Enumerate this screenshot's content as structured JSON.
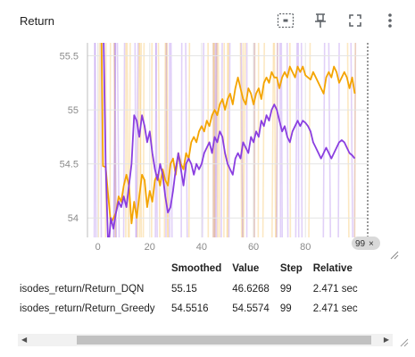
{
  "card": {
    "title": "Return"
  },
  "toolbar": {
    "icons": [
      "fit-domain-icon",
      "pin-icon",
      "fullscreen-icon",
      "more-vert-icon"
    ]
  },
  "step_badge": {
    "label": "99",
    "close": "×"
  },
  "legend": {
    "headers": {
      "name": "",
      "smoothed": "Smoothed",
      "value": "Value",
      "step": "Step",
      "relative": "Relative"
    },
    "rows": [
      {
        "name": "isodes_return/Return_DQN",
        "smoothed": "55.15",
        "value": "46.6268",
        "step": "99",
        "relative": "2.471 sec",
        "color": "#f4a400"
      },
      {
        "name": "isodes_return/Return_Greedy",
        "smoothed": "54.5516",
        "value": "54.5574",
        "step": "99",
        "relative": "2.471 sec",
        "color": "#8a3ee0"
      }
    ]
  },
  "chart_data": {
    "type": "line",
    "title": "Return",
    "xlabel": "",
    "ylabel": "",
    "xlim": [
      -4,
      104
    ],
    "ylim": [
      53.82,
      55.62
    ],
    "x_ticks": [
      0,
      20,
      40,
      60,
      80
    ],
    "y_ticks": [
      54,
      54.5,
      55,
      55.5
    ],
    "grid": true,
    "series": [
      {
        "name": "isodes_return/Return_DQN",
        "color": "#f4a400",
        "smoothed": [
          [
            1,
            56.5
          ],
          [
            2,
            54.48
          ],
          [
            3,
            54.47
          ],
          [
            4,
            54.2
          ],
          [
            5,
            53.95
          ],
          [
            6,
            54.0
          ],
          [
            7,
            54.05
          ],
          [
            8,
            54.2
          ],
          [
            9,
            54.15
          ],
          [
            10,
            54.3
          ],
          [
            11,
            54.4
          ],
          [
            12,
            54.3
          ],
          [
            13,
            53.95
          ],
          [
            14,
            54.15
          ],
          [
            15,
            54.0
          ],
          [
            16,
            54.2
          ],
          [
            17,
            54.4
          ],
          [
            18,
            54.35
          ],
          [
            19,
            54.1
          ],
          [
            20,
            54.25
          ],
          [
            21,
            54.15
          ],
          [
            22,
            54.35
          ],
          [
            23,
            54.4
          ],
          [
            24,
            54.3
          ],
          [
            25,
            54.45
          ],
          [
            26,
            54.35
          ],
          [
            27,
            54.3
          ],
          [
            28,
            54.5
          ],
          [
            29,
            54.55
          ],
          [
            30,
            54.4
          ],
          [
            31,
            54.6
          ],
          [
            32,
            54.5
          ],
          [
            33,
            54.45
          ],
          [
            34,
            54.6
          ],
          [
            35,
            54.55
          ],
          [
            36,
            54.7
          ],
          [
            37,
            54.75
          ],
          [
            38,
            54.7
          ],
          [
            39,
            54.8
          ],
          [
            40,
            54.85
          ],
          [
            41,
            54.8
          ],
          [
            42,
            54.9
          ],
          [
            43,
            54.85
          ],
          [
            44,
            54.95
          ],
          [
            45,
            55.0
          ],
          [
            46,
            54.95
          ],
          [
            47,
            55.05
          ],
          [
            48,
            55.1
          ],
          [
            49,
            55.0
          ],
          [
            50,
            55.1
          ],
          [
            51,
            55.15
          ],
          [
            52,
            55.05
          ],
          [
            53,
            55.2
          ],
          [
            54,
            55.3
          ],
          [
            55,
            55.2
          ],
          [
            56,
            55.1
          ],
          [
            57,
            55.05
          ],
          [
            58,
            55.2
          ],
          [
            59,
            55.15
          ],
          [
            60,
            55.05
          ],
          [
            61,
            55.15
          ],
          [
            62,
            55.2
          ],
          [
            63,
            55.1
          ],
          [
            64,
            55.25
          ],
          [
            65,
            55.3
          ],
          [
            66,
            55.25
          ],
          [
            67,
            55.35
          ],
          [
            68,
            55.3
          ],
          [
            69,
            55.3
          ],
          [
            70,
            55.2
          ],
          [
            71,
            55.3
          ],
          [
            72,
            55.35
          ],
          [
            73,
            55.3
          ],
          [
            74,
            55.4
          ],
          [
            75,
            55.35
          ],
          [
            76,
            55.3
          ],
          [
            77,
            55.4
          ],
          [
            78,
            55.35
          ],
          [
            79,
            55.4
          ],
          [
            80,
            55.32
          ],
          [
            81,
            55.3
          ],
          [
            82,
            55.28
          ],
          [
            83,
            55.35
          ],
          [
            84,
            55.3
          ],
          [
            85,
            55.25
          ],
          [
            86,
            55.2
          ],
          [
            87,
            55.15
          ],
          [
            88,
            55.3
          ],
          [
            89,
            55.35
          ],
          [
            90,
            55.3
          ],
          [
            91,
            55.4
          ],
          [
            92,
            55.35
          ],
          [
            93,
            55.25
          ],
          [
            94,
            55.3
          ],
          [
            95,
            55.35
          ],
          [
            96,
            55.3
          ],
          [
            97,
            55.2
          ],
          [
            98,
            55.3
          ],
          [
            99,
            55.15
          ]
        ]
      },
      {
        "name": "isodes_return/Return_Greedy",
        "color": "#8a3ee0",
        "smoothed": [
          [
            2,
            56.0
          ],
          [
            3,
            54.5
          ],
          [
            4,
            53.7
          ],
          [
            5,
            54.0
          ],
          [
            6,
            53.9
          ],
          [
            7,
            54.05
          ],
          [
            8,
            54.15
          ],
          [
            9,
            54.1
          ],
          [
            10,
            54.2
          ],
          [
            11,
            54.1
          ],
          [
            12,
            54.3
          ],
          [
            13,
            54.5
          ],
          [
            14,
            54.95
          ],
          [
            15,
            54.9
          ],
          [
            16,
            54.75
          ],
          [
            17,
            54.95
          ],
          [
            18,
            54.85
          ],
          [
            19,
            54.7
          ],
          [
            20,
            54.8
          ],
          [
            21,
            54.6
          ],
          [
            22,
            54.45
          ],
          [
            23,
            54.35
          ],
          [
            24,
            54.5
          ],
          [
            25,
            54.4
          ],
          [
            26,
            54.2
          ],
          [
            27,
            54.05
          ],
          [
            28,
            54.1
          ],
          [
            29,
            54.25
          ],
          [
            30,
            54.45
          ],
          [
            31,
            54.6
          ],
          [
            32,
            54.45
          ],
          [
            33,
            54.3
          ],
          [
            34,
            54.5
          ],
          [
            35,
            54.55
          ],
          [
            36,
            54.5
          ],
          [
            37,
            54.4
          ],
          [
            38,
            54.5
          ],
          [
            39,
            54.45
          ],
          [
            40,
            54.5
          ],
          [
            41,
            54.6
          ],
          [
            42,
            54.65
          ],
          [
            43,
            54.7
          ],
          [
            44,
            54.6
          ],
          [
            45,
            54.75
          ],
          [
            46,
            54.7
          ],
          [
            47,
            54.8
          ],
          [
            48,
            54.75
          ],
          [
            49,
            54.6
          ],
          [
            50,
            54.5
          ],
          [
            51,
            54.45
          ],
          [
            52,
            54.4
          ],
          [
            53,
            54.55
          ],
          [
            54,
            54.6
          ],
          [
            55,
            54.55
          ],
          [
            56,
            54.7
          ],
          [
            57,
            54.65
          ],
          [
            58,
            54.6
          ],
          [
            59,
            54.75
          ],
          [
            60,
            54.7
          ],
          [
            61,
            54.8
          ],
          [
            62,
            54.75
          ],
          [
            63,
            54.9
          ],
          [
            64,
            54.85
          ],
          [
            65,
            54.95
          ],
          [
            66,
            54.9
          ],
          [
            67,
            55.0
          ],
          [
            68,
            55.05
          ],
          [
            69,
            55.0
          ],
          [
            70,
            54.9
          ],
          [
            71,
            54.8
          ],
          [
            72,
            54.85
          ],
          [
            73,
            54.75
          ],
          [
            74,
            54.7
          ],
          [
            75,
            54.8
          ],
          [
            76,
            54.85
          ],
          [
            77,
            54.9
          ],
          [
            78,
            54.85
          ],
          [
            79,
            54.9
          ],
          [
            80,
            54.88
          ],
          [
            81,
            54.85
          ],
          [
            82,
            54.8
          ],
          [
            83,
            54.7
          ],
          [
            84,
            54.65
          ],
          [
            85,
            54.6
          ],
          [
            86,
            54.55
          ],
          [
            87,
            54.6
          ],
          [
            88,
            54.65
          ],
          [
            89,
            54.6
          ],
          [
            90,
            54.55
          ],
          [
            91,
            54.6
          ],
          [
            92,
            54.65
          ],
          [
            93,
            54.7
          ],
          [
            94,
            54.72
          ],
          [
            95,
            54.7
          ],
          [
            96,
            54.65
          ],
          [
            97,
            54.6
          ],
          [
            98,
            54.58
          ],
          [
            99,
            54.55
          ]
        ]
      }
    ]
  }
}
